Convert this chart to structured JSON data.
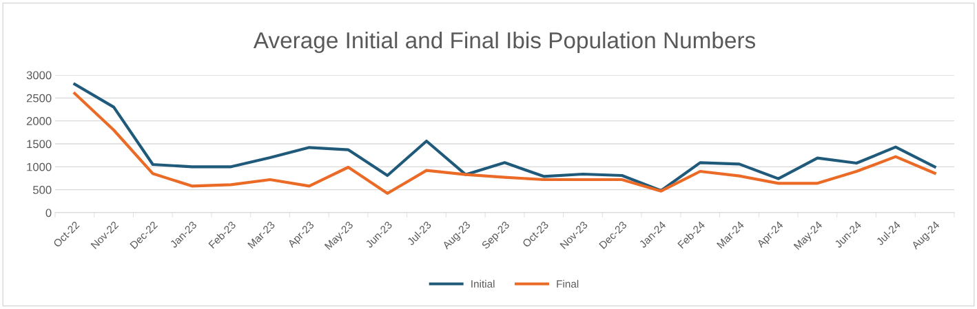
{
  "chart_data": {
    "type": "line",
    "title": "Average Initial and Final Ibis Population Numbers",
    "categories": [
      "Oct-22",
      "Nov-22",
      "Dec-22",
      "Jan-23",
      "Feb-23",
      "Mar-23",
      "Apr-23",
      "May-23",
      "Jun-23",
      "Jul-23",
      "Aug-23",
      "Sep-23",
      "Oct-23",
      "Nov-23",
      "Dec-23",
      "Jan-24",
      "Feb-24",
      "Mar-24",
      "Apr-24",
      "May-24",
      "Jun-24",
      "Jul-24",
      "Aug-24"
    ],
    "series": [
      {
        "name": "Initial",
        "color": "#1f5a7a",
        "values": [
          2800,
          2300,
          1050,
          1000,
          1000,
          1200,
          1420,
          1370,
          810,
          1560,
          830,
          1090,
          790,
          840,
          810,
          480,
          1090,
          1060,
          740,
          1190,
          1080,
          1430,
          1000
        ]
      },
      {
        "name": "Final",
        "color": "#ea6a26",
        "values": [
          2600,
          1800,
          850,
          580,
          610,
          720,
          580,
          990,
          420,
          920,
          830,
          770,
          720,
          720,
          720,
          470,
          900,
          800,
          640,
          640,
          900,
          1220,
          860
        ]
      }
    ],
    "ylim": [
      0,
      3000
    ],
    "yticks": [
      0,
      500,
      1000,
      1500,
      2000,
      2500,
      3000
    ],
    "grid": "y",
    "legend": "bottom",
    "marker": "none",
    "line_style": "solid"
  }
}
